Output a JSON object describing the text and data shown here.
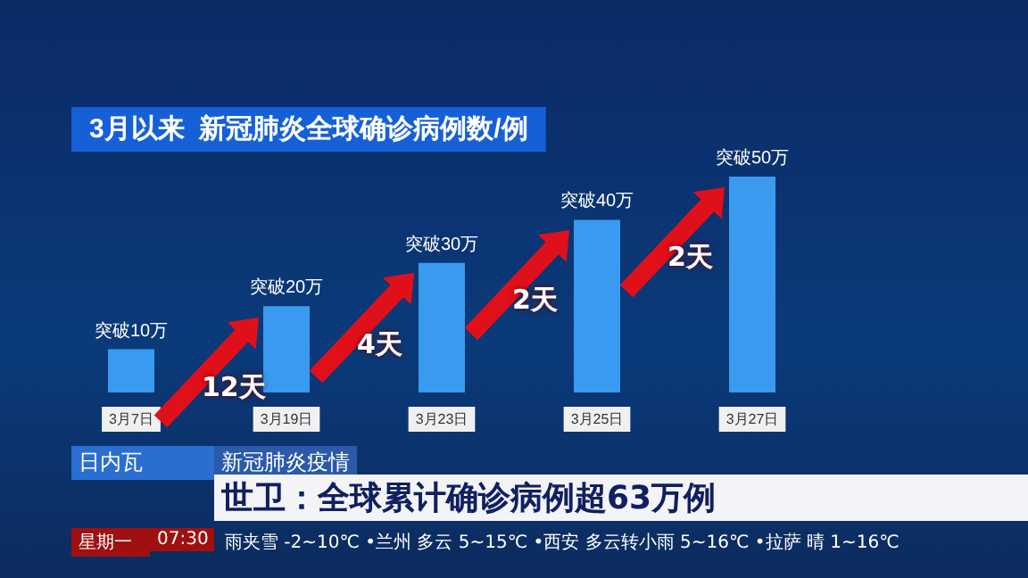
{
  "chart_data": {
    "type": "bar",
    "title": "3月以来  新冠肺炎全球确诊病例数/例",
    "categories": [
      "3月7日",
      "3月19日",
      "3月23日",
      "3月25日",
      "3月27日"
    ],
    "values": [
      10,
      20,
      30,
      40,
      50
    ],
    "color": "#3a9af0",
    "value_labels": [
      "突破10万",
      "突破20万",
      "突破30万",
      "突破40万",
      "突破50万"
    ],
    "grid": false,
    "annotations": [
      "12天",
      "4天",
      "2天",
      "2天",
      "日内瓦",
      "新冠肺炎疫情",
      "世卫：全球累计确诊病例超63万例",
      "星期一",
      "07:30",
      "雨夹雪 -2~10℃ •兰州 多云 5~15℃ •西安 多云转小雨 5~16℃ •拉萨 晴 1~16℃"
    ]
  }
}
